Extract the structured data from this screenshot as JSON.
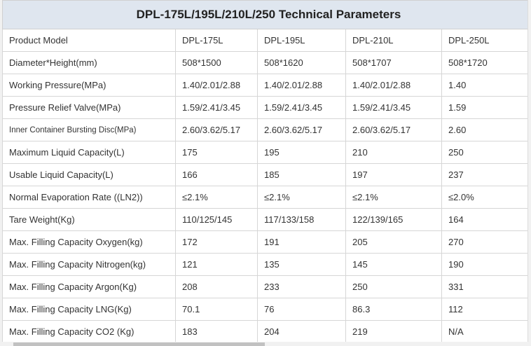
{
  "title": "DPL-175L/195L/210L/250 Technical Parameters",
  "rows": [
    {
      "label": "Product Model",
      "values": [
        "DPL-175L",
        "DPL-195L",
        "DPL-210L",
        "DPL-250L"
      ]
    },
    {
      "label": "Diameter*Height(mm)",
      "values": [
        "508*1500",
        "508*1620",
        "508*1707",
        "508*1720"
      ]
    },
    {
      "label": "Working Pressure(MPa)",
      "values": [
        "1.40/2.01/2.88",
        "1.40/2.01/2.88",
        "1.40/2.01/2.88",
        "1.40"
      ]
    },
    {
      "label": "Pressure Relief Valve(MPa)",
      "values": [
        "1.59/2.41/3.45",
        "1.59/2.41/3.45",
        "1.59/2.41/3.45",
        "1.59"
      ]
    },
    {
      "label": "Inner Container Bursting Disc(MPa)",
      "values": [
        "2.60/3.62/5.17",
        "2.60/3.62/5.17",
        "2.60/3.62/5.17",
        "2.60"
      ]
    },
    {
      "label": "Maximum Liquid Capacity(L)",
      "values": [
        "175",
        "195",
        "210",
        "250"
      ]
    },
    {
      "label": "Usable Liquid Capacity(L)",
      "values": [
        "166",
        "185",
        "197",
        "237"
      ]
    },
    {
      "label": "Normal Evaporation Rate ((LN2))",
      "values": [
        "≤2.1%",
        "≤2.1%",
        "≤2.1%",
        "≤2.0%"
      ]
    },
    {
      "label": "Tare Weight(Kg)",
      "values": [
        "110/125/145",
        "117/133/158",
        "122/139/165",
        "164"
      ]
    },
    {
      "label": "Max. Filling Capacity Oxygen(kg)",
      "values": [
        "172",
        "191",
        "205",
        "270"
      ]
    },
    {
      "label": "Max. Filling Capacity Nitrogen(kg)",
      "values": [
        "121",
        "135",
        "145",
        "190"
      ]
    },
    {
      "label": "Max. Filling Capacity Argon(Kg)",
      "values": [
        "208",
        "233",
        "250",
        "331"
      ]
    },
    {
      "label": "Max. Filling Capacity LNG(Kg)",
      "values": [
        "70.1",
        "76",
        "86.3",
        "112"
      ]
    },
    {
      "label": "Max. Filling Capacity CO2 (Kg)",
      "values": [
        "183",
        "204",
        "219",
        "N/A"
      ]
    }
  ],
  "scrollbar": {
    "position_fraction": 0.03
  }
}
